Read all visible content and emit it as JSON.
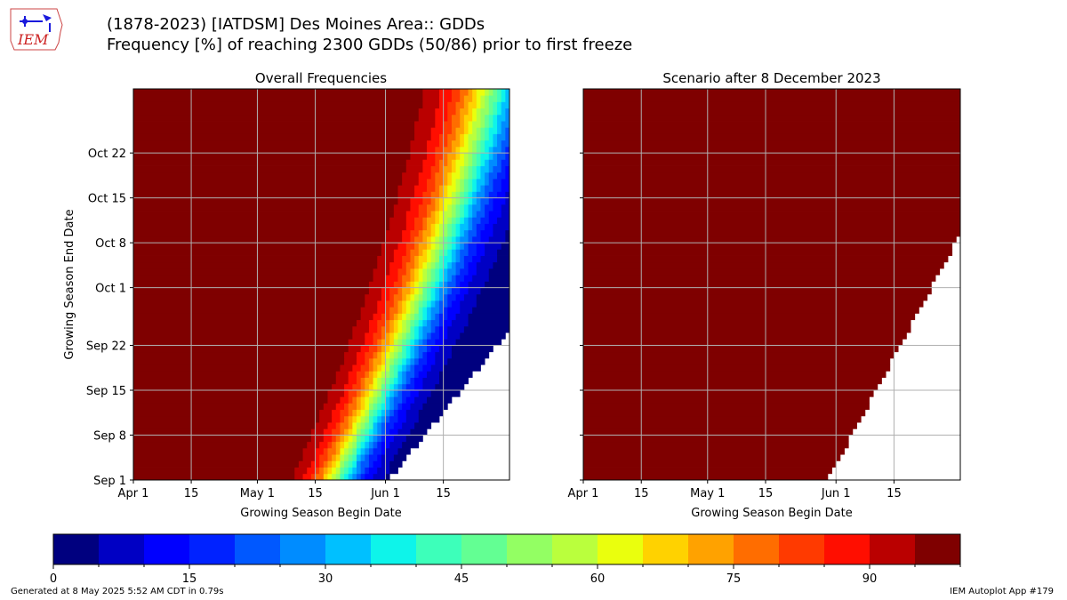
{
  "header": {
    "logo_text": "IEM",
    "title_line1": "(1878-2023) [IATDSM] Des Moines Area:: GDDs",
    "title_line2": "Frequency [%] of reaching 2300 GDDs (50/86) prior to first freeze"
  },
  "footer": {
    "generated": "Generated at 8 May 2025 5:52 AM CDT in 0.79s",
    "app": "IEM Autoplot App #179"
  },
  "colors": {
    "colormap": [
      "#00007f",
      "#0000c4",
      "#0000ff",
      "#0022ff",
      "#0058ff",
      "#008cff",
      "#00c0ff",
      "#0ef4ea",
      "#3dffba",
      "#63ff93",
      "#93ff63",
      "#baff3d",
      "#eaff0d",
      "#ffd200",
      "#ffa200",
      "#ff6d00",
      "#ff3a00",
      "#ff0e00",
      "#ba0000",
      "#7f0000"
    ],
    "grid": "#b0b0b0"
  },
  "chart_data": [
    {
      "type": "heatmap",
      "title": "Overall Frequencies",
      "xlabel": "Growing Season Begin Date",
      "ylabel": "Growing Season End Date",
      "x_ticks": [
        "Apr 1",
        "15",
        "May 1",
        "15",
        "Jun 1",
        "15"
      ],
      "y_ticks": [
        "Sep 1",
        "Sep 8",
        "Sep 15",
        "Sep 22",
        "Oct 1",
        "Oct 8",
        "Oct 15",
        "Oct 22"
      ],
      "x_range": [
        "Apr 1",
        "Jun 30"
      ],
      "y_range": [
        "Sep 1",
        "Oct 31"
      ],
      "value_range": [
        0,
        100
      ],
      "note_values": "Frequency [%]; 100% for early begin dates, falling to 0% for late begin / early end dates"
    },
    {
      "type": "heatmap",
      "title": "Scenario after 8 December 2023",
      "xlabel": "Growing Season Begin Date",
      "ylabel": "",
      "x_ticks": [
        "Apr 1",
        "15",
        "May 1",
        "15",
        "Jun 1",
        "15"
      ],
      "y_ticks": [
        "Sep 1",
        "Sep 8",
        "Sep 15",
        "Sep 22",
        "Oct 1",
        "Oct 8",
        "Oct 15",
        "Oct 22"
      ],
      "x_range": [
        "Apr 1",
        "Jun 30"
      ],
      "y_range": [
        "Sep 1",
        "Oct 31"
      ],
      "value_range": [
        0,
        100
      ]
    }
  ],
  "colorbar": {
    "ticks": [
      "0",
      "15",
      "30",
      "45",
      "60",
      "75",
      "90"
    ],
    "tick_values": [
      0,
      15,
      30,
      45,
      60,
      75,
      90
    ],
    "range": [
      0,
      100
    ],
    "bins": 20
  }
}
